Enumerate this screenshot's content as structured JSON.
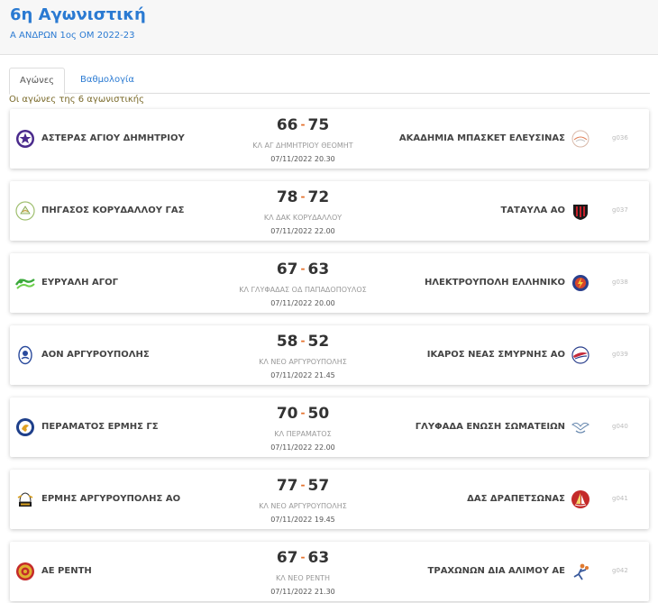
{
  "header": {
    "title": "6η Αγωνιστική",
    "subtitle": "Α ΑΝΔΡΩΝ 1ος ΟΜ 2022-23"
  },
  "tabs": [
    {
      "label": "Αγώνες",
      "active": true
    },
    {
      "label": "Βαθμολογία",
      "active": false
    }
  ],
  "intro": "Οι αγώνες της 6 αγωνιστικής",
  "games": [
    {
      "home": "ΑΣΤΕΡΑΣ ΑΓΙΟΥ ΔΗΜΗΤΡΙΟΥ",
      "away": "ΑΚΑΔΗΜΙΑ ΜΠΑΣΚΕΤ ΕΛΕΥΣΙΝΑΣ",
      "home_score": "66",
      "away_score": "75",
      "venue": "ΚΛ ΑΓ ΔΗΜΗΤΡΙΟΥ ΘΕΟΜΗΤ",
      "date": "07/11/2022 20.30",
      "code": "g036",
      "home_icon": "star-crest-icon",
      "away_icon": "basketball-academy-crest-icon"
    },
    {
      "home": "ΠΗΓΑΣΟΣ ΚΟΡΥΔΑΛΛΟΥ ΓΑΣ",
      "away": "ΤΑΤΑΥΛΑ ΑΟ",
      "home_score": "78",
      "away_score": "72",
      "venue": "ΚΛ ΔΑΚ ΚΟΡΥΔΑΛΛΟΥ",
      "date": "07/11/2022 22.00",
      "code": "g037",
      "home_icon": "pegasus-crest-icon",
      "away_icon": "striped-shield-crest-icon"
    },
    {
      "home": "ΕΥΡΥΑΛΗ ΑΓΟΓ",
      "away": "ΗΛΕΚΤΡΟΥΠΟΛΗ ΕΛΛΗΝΙΚΟ",
      "home_score": "67",
      "away_score": "63",
      "venue": "ΚΛ ΓΛΥΦΑΔΑΣ ΟΔ ΠΑΠΑΔΟΠΟΥΛΟΣ",
      "date": "07/11/2022 20.00",
      "code": "g038",
      "home_icon": "green-wave-crest-icon",
      "away_icon": "lightning-crest-icon"
    },
    {
      "home": "ΑΟΝ ΑΡΓΥΡΟΥΠΟΛΗΣ",
      "away": "ΙΚΑΡΟΣ ΝΕΑΣ ΣΜΥΡΝΗΣ ΑΟ",
      "home_score": "58",
      "away_score": "52",
      "venue": "ΚΛ ΝΕΟ ΑΡΓΥΡΟΥΠΟΛΗΣ",
      "date": "07/11/2022 21.45",
      "code": "g039",
      "home_icon": "blue-emblem-crest-icon",
      "away_icon": "icarus-crest-icon"
    },
    {
      "home": "ΠΕΡΑΜΑΤΟΣ ΕΡΜΗΣ ΓΣ",
      "away": "ΓΛΥΦΑΔΑ ΕΝΩΣΗ ΣΩΜΑΤΕΙΩΝ",
      "home_score": "70",
      "away_score": "50",
      "venue": "ΚΛ ΠΕΡΑΜΑΤΟΣ",
      "date": "07/11/2022 22.00",
      "code": "g040",
      "home_icon": "hermes-round-crest-icon",
      "away_icon": "wings-crest-icon"
    },
    {
      "home": "ΕΡΜΗΣ ΑΡΓΥΡΟΥΠΟΛΗΣ ΑΟ",
      "away": "ΔΑΣ ΔΡΑΠΕΤΣΩΝΑΣ",
      "home_score": "77",
      "away_score": "57",
      "venue": "ΚΛ ΝΕΟ ΑΡΓΥΡΟΥΠΟΛΗΣ",
      "date": "07/11/2022 19.45",
      "code": "g041",
      "home_icon": "hermes-helmet-crest-icon",
      "away_icon": "red-sail-crest-icon"
    },
    {
      "home": "ΑΕ ΡΕΝΤΗ",
      "away": "ΤΡΑΧΩΝΩΝ ΔΙΑ ΑΛΙΜΟΥ ΑΕ",
      "home_score": "67",
      "away_score": "63",
      "venue": "ΚΛ ΝΕΟ ΡΕΝΤΗ",
      "date": "07/11/2022 21.30",
      "code": "g042",
      "home_icon": "gold-red-crest-icon",
      "away_icon": "player-figure-crest-icon"
    }
  ]
}
